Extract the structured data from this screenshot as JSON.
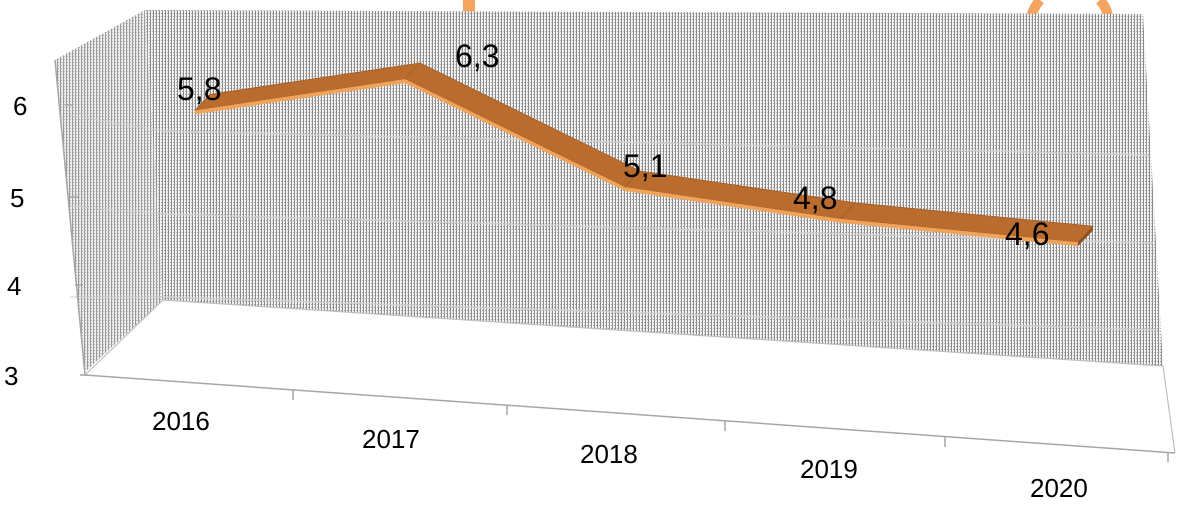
{
  "chart_data": {
    "type": "line",
    "style": "3d-ribbon",
    "categories": [
      "2016",
      "2017",
      "2018",
      "2019",
      "2020"
    ],
    "series": [
      {
        "values": [
          5.8,
          6.3,
          5.1,
          4.8,
          4.6
        ],
        "labels": [
          "5,8",
          "6,3",
          "5,1",
          "4,8",
          "4,6"
        ],
        "color": "#E0913F"
      }
    ],
    "y_ticks": [
      "3",
      "4",
      "5",
      "6"
    ],
    "ylim": [
      3,
      6.5
    ],
    "grid": true,
    "legend": "none",
    "colors": {
      "ribbon_top": "#B96C2E",
      "ribbon_front": "#F0A35A",
      "wall": "#BFBFBF",
      "axis": "#A6A6A6",
      "title_partial": "#F4A460"
    }
  }
}
